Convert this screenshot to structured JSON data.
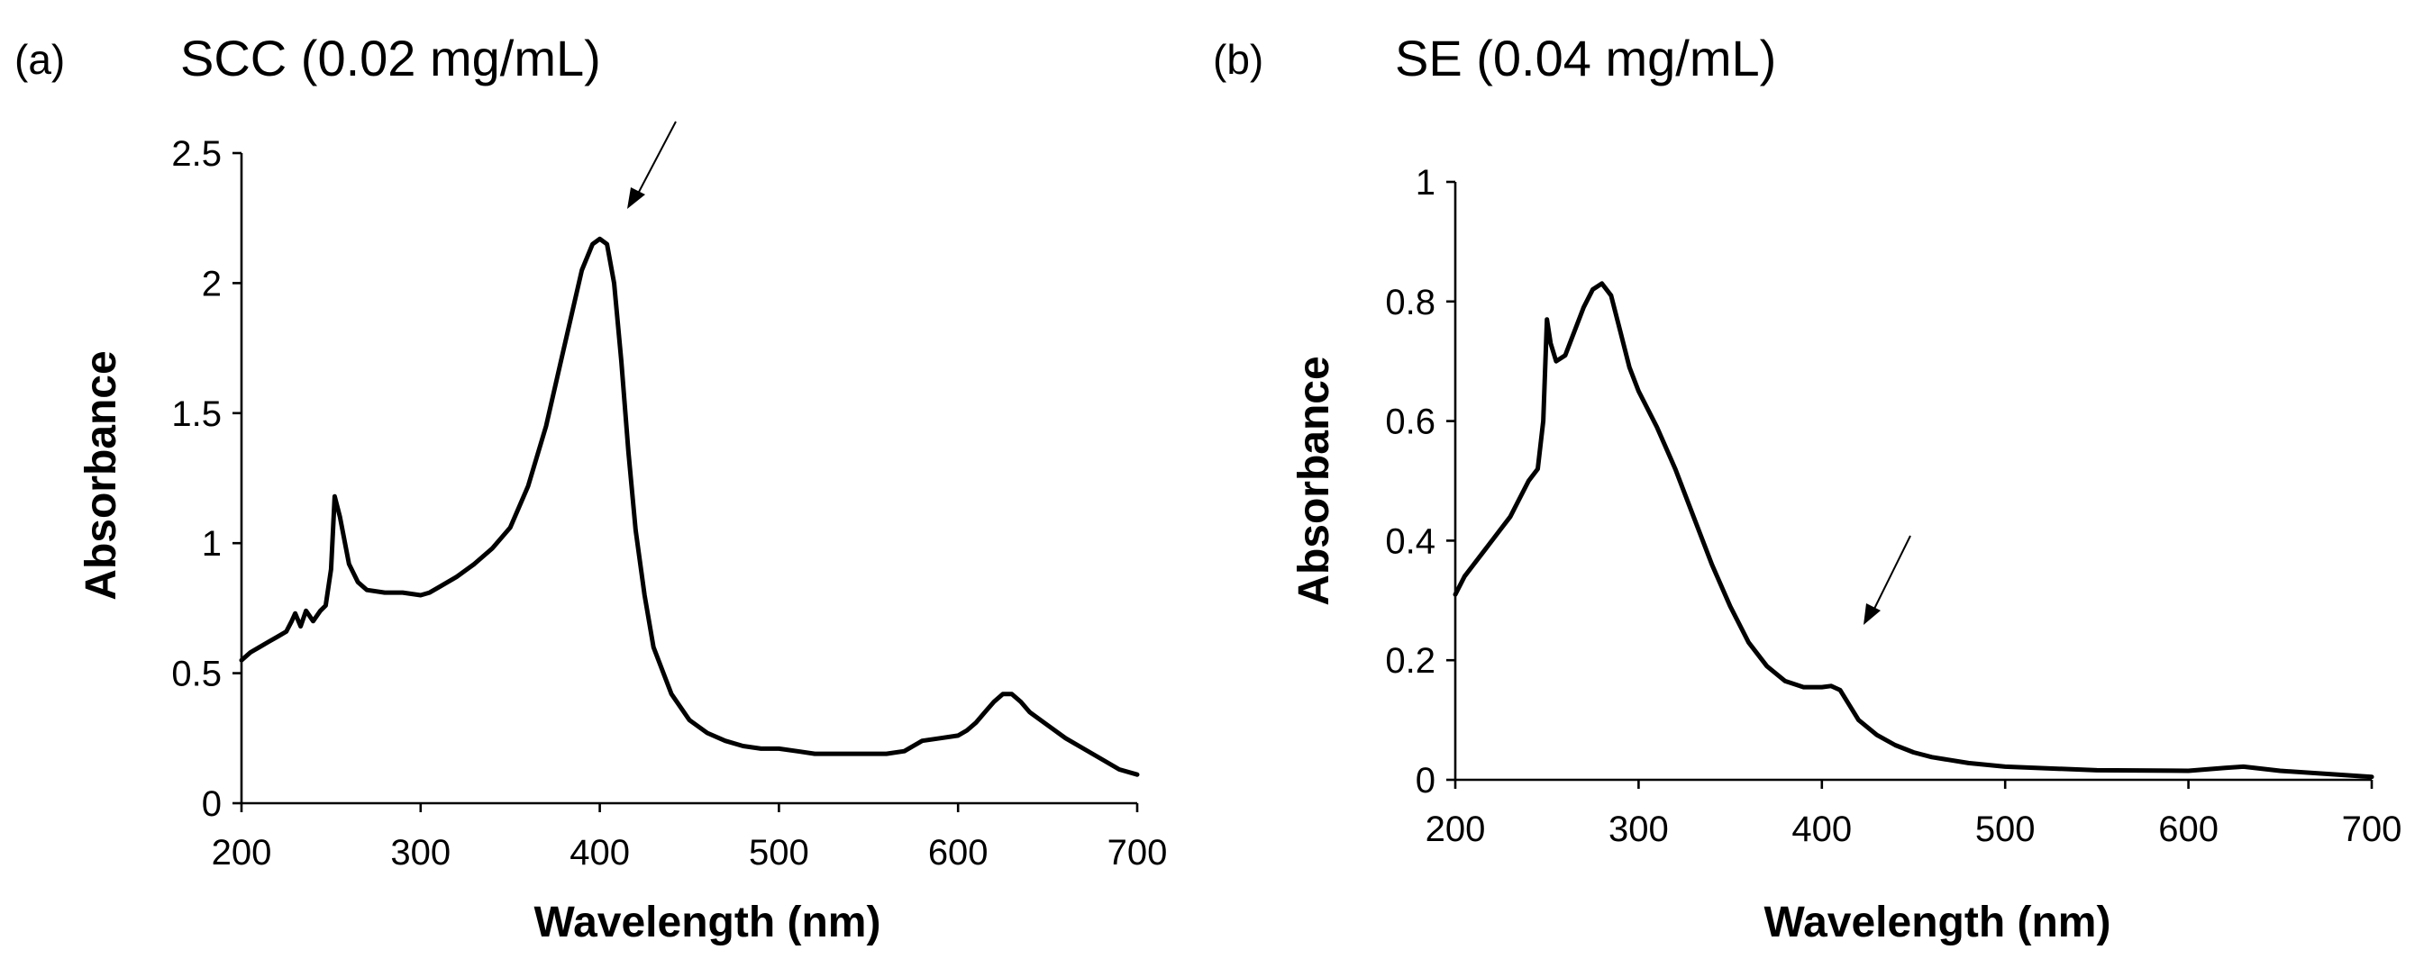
{
  "chart_data": [
    {
      "type": "line",
      "panel_label": "(a)",
      "title": "SCC (0.02 mg/mL)",
      "xlabel": "Wavelength (nm)",
      "ylabel": "Absorbance",
      "xlim": [
        200,
        700
      ],
      "ylim": [
        0,
        2.5
      ],
      "xticks": [
        200,
        300,
        400,
        500,
        600,
        700
      ],
      "yticks": [
        0,
        0.5,
        1,
        1.5,
        2,
        2.5
      ],
      "ytick_labels": [
        "0",
        "0.5",
        "1",
        "1.5",
        "2",
        "2.5"
      ],
      "grid": false,
      "annotations": [
        {
          "type": "arrow",
          "points_to": [
            410,
            2.3
          ]
        }
      ],
      "series": [
        {
          "name": "SCC",
          "x": [
            200,
            205,
            210,
            215,
            220,
            225,
            228,
            230,
            233,
            236,
            240,
            244,
            247,
            250,
            252,
            255,
            260,
            265,
            270,
            280,
            290,
            300,
            305,
            310,
            320,
            330,
            340,
            350,
            360,
            370,
            380,
            390,
            396,
            400,
            404,
            408,
            412,
            416,
            420,
            425,
            430,
            440,
            450,
            460,
            470,
            480,
            490,
            500,
            510,
            520,
            530,
            540,
            550,
            560,
            570,
            580,
            590,
            600,
            605,
            610,
            615,
            620,
            625,
            630,
            635,
            640,
            650,
            660,
            670,
            680,
            690,
            700
          ],
          "values": [
            0.55,
            0.58,
            0.6,
            0.62,
            0.64,
            0.66,
            0.7,
            0.73,
            0.68,
            0.74,
            0.7,
            0.74,
            0.76,
            0.9,
            1.18,
            1.1,
            0.92,
            0.85,
            0.82,
            0.81,
            0.81,
            0.8,
            0.81,
            0.83,
            0.87,
            0.92,
            0.98,
            1.06,
            1.22,
            1.45,
            1.75,
            2.05,
            2.15,
            2.17,
            2.15,
            2.0,
            1.7,
            1.35,
            1.05,
            0.8,
            0.6,
            0.42,
            0.32,
            0.27,
            0.24,
            0.22,
            0.21,
            0.21,
            0.2,
            0.19,
            0.19,
            0.19,
            0.19,
            0.19,
            0.2,
            0.24,
            0.25,
            0.26,
            0.28,
            0.31,
            0.35,
            0.39,
            0.42,
            0.42,
            0.39,
            0.35,
            0.3,
            0.25,
            0.21,
            0.17,
            0.13,
            0.11
          ]
        }
      ]
    },
    {
      "type": "line",
      "panel_label": "(b)",
      "title": "SE (0.04 mg/mL)",
      "xlabel": "Wavelength (nm)",
      "ylabel": "Absorbance",
      "xlim": [
        200,
        700
      ],
      "ylim": [
        0,
        1
      ],
      "xticks": [
        200,
        300,
        400,
        500,
        600,
        700
      ],
      "yticks": [
        0,
        0.2,
        0.4,
        0.6,
        0.8,
        1
      ],
      "ytick_labels": [
        "0",
        "0.2",
        "0.4",
        "0.6",
        "0.8",
        "1"
      ],
      "grid": false,
      "annotations": [
        {
          "type": "arrow",
          "points_to": [
            420,
            0.26
          ]
        }
      ],
      "series": [
        {
          "name": "SE",
          "x": [
            200,
            205,
            210,
            215,
            220,
            225,
            230,
            235,
            240,
            245,
            248,
            250,
            252,
            255,
            260,
            265,
            270,
            275,
            280,
            285,
            290,
            295,
            300,
            310,
            320,
            330,
            340,
            350,
            360,
            370,
            380,
            390,
            400,
            405,
            410,
            415,
            420,
            430,
            440,
            450,
            460,
            480,
            500,
            550,
            600,
            620,
            630,
            650,
            700
          ],
          "values": [
            0.31,
            0.34,
            0.36,
            0.38,
            0.4,
            0.42,
            0.44,
            0.47,
            0.5,
            0.52,
            0.6,
            0.77,
            0.73,
            0.7,
            0.71,
            0.75,
            0.79,
            0.82,
            0.83,
            0.81,
            0.75,
            0.69,
            0.65,
            0.59,
            0.52,
            0.44,
            0.36,
            0.29,
            0.23,
            0.19,
            0.165,
            0.155,
            0.155,
            0.157,
            0.15,
            0.125,
            0.1,
            0.075,
            0.058,
            0.046,
            0.038,
            0.028,
            0.022,
            0.016,
            0.015,
            0.02,
            0.022,
            0.015,
            0.005
          ]
        }
      ]
    }
  ]
}
